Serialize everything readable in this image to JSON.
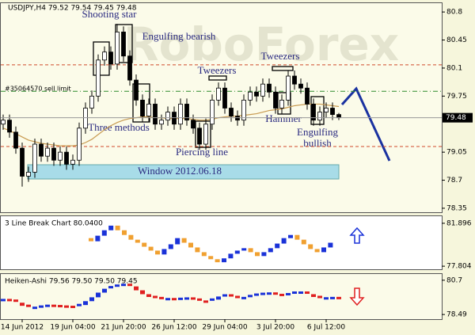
{
  "chart_data": [
    {
      "type": "candlestick",
      "title": "USDJPY,H4  79.52 79.54 79.45 79.48",
      "watermark": "RoboForex",
      "categories": [
        null,
        null,
        null,
        "14 Jun 2012",
        null,
        null,
        null,
        null,
        null,
        null,
        null,
        "19 Jun 04:00",
        null,
        null,
        null,
        null,
        null,
        null,
        null,
        "21 Jun 20:00",
        null,
        null,
        null,
        null,
        null,
        null,
        null,
        "26 Jun 12:00",
        null,
        null,
        null,
        null,
        null,
        null,
        null,
        "29 Jun 04:00",
        null,
        null,
        null,
        null,
        null,
        null,
        null,
        "3 Jul 20:00",
        null,
        null,
        null,
        null,
        null,
        null,
        null,
        "6 Jul 12:00",
        null,
        null
      ],
      "open": [
        79.4,
        79.45,
        79.3,
        79.1,
        78.75,
        78.8,
        79.15,
        79.0,
        79.1,
        78.95,
        79.05,
        78.9,
        78.95,
        79.35,
        79.6,
        79.75,
        80.2,
        80.3,
        80.15,
        80.55,
        80.25,
        79.95,
        79.7,
        79.5,
        79.65,
        79.4,
        79.45,
        79.55,
        79.4,
        79.65,
        79.45,
        79.35,
        79.15,
        79.4,
        79.7,
        79.85,
        79.6,
        79.5,
        79.45,
        79.7,
        79.8,
        79.75,
        79.9,
        79.8,
        79.6,
        79.7,
        80.0,
        79.9,
        79.85,
        79.65,
        79.45,
        79.55,
        79.6,
        79.52
      ],
      "high": [
        79.52,
        79.52,
        79.37,
        79.17,
        78.87,
        79.22,
        79.22,
        79.17,
        79.17,
        79.12,
        79.12,
        79.02,
        79.42,
        79.67,
        79.82,
        80.27,
        80.37,
        80.37,
        80.65,
        80.62,
        80.32,
        80.02,
        79.77,
        79.72,
        79.72,
        79.52,
        79.62,
        79.62,
        79.72,
        79.72,
        79.52,
        79.42,
        79.47,
        79.77,
        79.92,
        79.92,
        79.67,
        79.57,
        79.77,
        79.87,
        79.87,
        79.97,
        79.97,
        79.87,
        79.77,
        80.07,
        80.07,
        79.97,
        79.92,
        79.72,
        79.62,
        79.67,
        79.67,
        79.54
      ],
      "low": [
        79.33,
        79.23,
        79.03,
        78.62,
        78.68,
        78.73,
        78.93,
        78.93,
        78.88,
        78.88,
        78.83,
        78.83,
        78.88,
        79.28,
        79.53,
        79.68,
        80.13,
        80.08,
        80.08,
        80.18,
        79.88,
        79.63,
        79.43,
        79.43,
        79.33,
        79.33,
        79.38,
        79.33,
        79.33,
        79.38,
        79.28,
        79.08,
        79.08,
        79.33,
        79.63,
        79.53,
        79.43,
        79.38,
        79.38,
        79.63,
        79.68,
        79.68,
        79.73,
        79.53,
        79.53,
        79.63,
        79.83,
        79.78,
        79.58,
        79.38,
        79.38,
        79.48,
        79.45,
        79.45
      ],
      "close": [
        79.45,
        79.3,
        79.1,
        78.75,
        78.8,
        79.15,
        79.0,
        79.1,
        78.95,
        79.05,
        78.9,
        78.95,
        79.35,
        79.6,
        79.75,
        80.2,
        80.3,
        80.15,
        80.55,
        80.25,
        79.95,
        79.7,
        79.5,
        79.65,
        79.4,
        79.45,
        79.55,
        79.4,
        79.65,
        79.45,
        79.35,
        79.15,
        79.4,
        79.7,
        79.85,
        79.6,
        79.5,
        79.45,
        79.7,
        79.8,
        79.75,
        79.9,
        79.8,
        79.6,
        79.7,
        80.0,
        79.9,
        79.85,
        79.65,
        79.45,
        79.55,
        79.6,
        79.52,
        79.48
      ],
      "up_color": "#ffffff",
      "down_color": "#000000",
      "moving_average": {
        "color": "#c89a50",
        "values": [
          79.35,
          79.32,
          79.28,
          79.24,
          79.2,
          79.18,
          79.16,
          79.15,
          79.14,
          79.13,
          79.13,
          79.13,
          79.14,
          79.17,
          79.21,
          79.27,
          79.33,
          79.38,
          79.42,
          79.45,
          79.47,
          79.48,
          79.49,
          79.49,
          79.48,
          79.48,
          79.47,
          79.47,
          79.47,
          79.47,
          79.46,
          79.45,
          79.45,
          79.46,
          79.48,
          79.49,
          79.5,
          79.5,
          79.51,
          79.52,
          79.53,
          79.55,
          79.57,
          79.58,
          79.59,
          79.61,
          79.63,
          79.64,
          79.65,
          79.65,
          79.65,
          79.64,
          79.63,
          79.62
        ]
      },
      "levels": [
        {
          "value": 80.14,
          "color": "#d04a2a",
          "style": "dashed"
        },
        {
          "value": 79.81,
          "color": "#2e8b2e",
          "style": "dashdot"
        },
        {
          "value": 79.12,
          "color": "#d04a2a",
          "style": "dashed"
        }
      ],
      "sell_limit_label": "#35064570 sell limit",
      "annotations": [
        "Shooting star",
        "Engulfing bearish",
        "Tweezers",
        "Tweezers",
        "Three methods",
        "Hammer",
        "Engulfing",
        "bullish",
        "Piercing line",
        "Window 2012.06.18"
      ],
      "ylim": [
        78.3,
        80.91
      ],
      "yticks": [
        80.8,
        80.45,
        80.1,
        79.75,
        79.05,
        78.7,
        78.35
      ]
    },
    {
      "type": "line_break",
      "title": "3 Line Break Chart 80.0400",
      "values": [
        80.48,
        80.18,
        80.71,
        81.23,
        81.67,
        81.23,
        80.78,
        80.33,
        80.04,
        79.66,
        79.29,
        78.92,
        79.44,
        79.89,
        80.48,
        80.04,
        79.59,
        79.14,
        78.77,
        78.47,
        78.18,
        78.55,
        78.99,
        79.29,
        79.52,
        79.14,
        78.77,
        79.14,
        79.52,
        79.96,
        80.48,
        80.78,
        80.33,
        79.89,
        79.44,
        79.14,
        79.59,
        80.04
      ],
      "up_color": "#1a32d8",
      "down_color": "#f0a030",
      "ylim": [
        77.51,
        82.57
      ],
      "yticks": [
        {
          "value": 81.896,
          "label": "81.896"
        },
        {
          "value": 77.804,
          "label": "77.804"
        }
      ]
    },
    {
      "type": "heiken_ashi",
      "title": "Heiken-Ashi 79.56 79.50 79.50 79.45",
      "values": [
        79.42,
        79.38,
        79.25,
        79.05,
        78.9,
        78.92,
        79.0,
        79.05,
        79.03,
        79.0,
        78.98,
        78.95,
        79.1,
        79.35,
        79.6,
        79.9,
        80.15,
        80.25,
        80.35,
        80.4,
        80.3,
        80.05,
        79.8,
        79.62,
        79.55,
        79.48,
        79.48,
        79.47,
        79.5,
        79.52,
        79.45,
        79.32,
        79.3,
        79.45,
        79.65,
        79.72,
        79.62,
        79.52,
        79.55,
        79.68,
        79.77,
        79.82,
        79.84,
        79.75,
        79.68,
        79.8,
        79.9,
        79.9,
        79.8,
        79.62,
        79.52,
        79.53,
        79.55,
        79.5
      ],
      "up_color": "#1a32d8",
      "down_color": "#e02020",
      "ylim": [
        78.19,
        81.1
      ],
      "yticks": [
        80.7,
        78.49
      ]
    }
  ]
}
